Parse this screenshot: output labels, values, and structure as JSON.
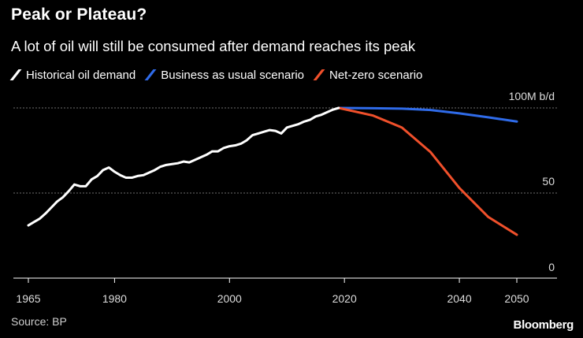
{
  "title": "Peak or Plateau?",
  "subtitle": "A lot of oil will still be consumed after demand reaches its peak",
  "source": "Source: BP",
  "brand": "Bloomberg",
  "colors": {
    "historical": "#ffffff",
    "business_as_usual": "#2f6be9",
    "net_zero": "#f0502b",
    "grid": "#6e6e6e",
    "axis": "#ffffff"
  },
  "chart_data": {
    "type": "line",
    "title": "Peak or Plateau?",
    "subtitle": "A lot of oil will still be consumed after demand reaches its peak",
    "xlabel": "",
    "ylabel": "",
    "unit": "M b/d",
    "xlim": [
      1965,
      2050
    ],
    "ylim": [
      0,
      100
    ],
    "x_ticks": [
      {
        "value": 1965,
        "label": "1965"
      },
      {
        "value": 1980,
        "label": "1980"
      },
      {
        "value": 2000,
        "label": "2000"
      },
      {
        "value": 2020,
        "label": "2020"
      },
      {
        "value": 2040,
        "label": "2040"
      },
      {
        "value": 2050,
        "label": "2050"
      }
    ],
    "y_ticks": [
      {
        "value": 100,
        "label": "100M b/d"
      },
      {
        "value": 50,
        "label": "50"
      },
      {
        "value": 0,
        "label": "0"
      }
    ],
    "legend_position": "top-left",
    "series": [
      {
        "name": "Historical oil demand",
        "x": [
          1965,
          1966,
          1967,
          1968,
          1969,
          1970,
          1971,
          1972,
          1973,
          1974,
          1975,
          1976,
          1977,
          1978,
          1979,
          1980,
          1981,
          1982,
          1983,
          1984,
          1985,
          1986,
          1987,
          1988,
          1989,
          1990,
          1991,
          1992,
          1993,
          1994,
          1995,
          1996,
          1997,
          1998,
          1999,
          2000,
          2001,
          2002,
          2003,
          2004,
          2005,
          2006,
          2007,
          2008,
          2009,
          2010,
          2011,
          2012,
          2013,
          2014,
          2015,
          2016,
          2017,
          2018,
          2019
        ],
        "values": [
          31.0,
          33.0,
          35.0,
          38.0,
          41.5,
          45.0,
          47.5,
          51.0,
          55.0,
          54.0,
          54.0,
          58.0,
          60.0,
          63.5,
          65.0,
          62.5,
          60.5,
          59.0,
          59.0,
          60.0,
          60.5,
          62.0,
          63.5,
          65.5,
          66.5,
          67.0,
          67.5,
          68.5,
          68.0,
          69.5,
          71.0,
          72.5,
          74.5,
          74.5,
          76.5,
          77.5,
          78.0,
          79.0,
          81.0,
          84.0,
          85.0,
          86.0,
          87.0,
          86.5,
          85.0,
          88.5,
          89.5,
          90.5,
          92.0,
          93.0,
          95.0,
          96.0,
          97.5,
          99.0,
          100.0
        ]
      },
      {
        "name": "Business as usual scenario",
        "x": [
          2019,
          2025,
          2030,
          2035,
          2040,
          2045,
          2050
        ],
        "values": [
          100.0,
          99.8,
          99.6,
          98.8,
          96.8,
          94.5,
          92.0
        ]
      },
      {
        "name": "Net-zero scenario",
        "x": [
          2019,
          2025,
          2030,
          2035,
          2040,
          2045,
          2050
        ],
        "values": [
          100.0,
          95.5,
          88.5,
          74.0,
          53.0,
          36.0,
          25.5
        ]
      }
    ]
  }
}
